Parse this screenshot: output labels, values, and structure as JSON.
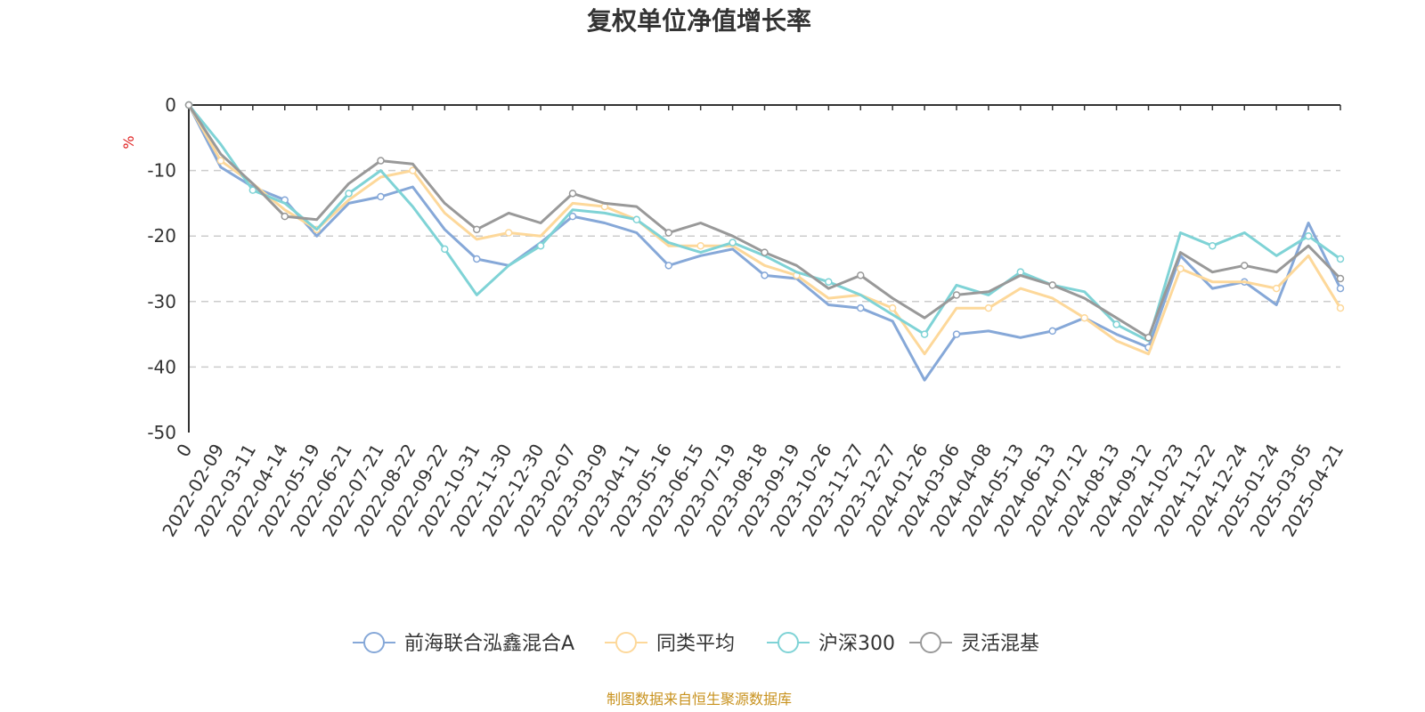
{
  "chart_data": {
    "type": "line",
    "title": "复权单位净值增长率",
    "ylabel": "%",
    "ylim": [
      -50,
      0
    ],
    "yticks": [
      0,
      -10,
      -20,
      -30,
      -40,
      -50
    ],
    "grid": true,
    "legend_position": "bottom",
    "source": "制图数据来自恒生聚源数据库",
    "xticks": [
      "0",
      "2022-02-09",
      "2022-03-11",
      "2022-04-14",
      "2022-05-19",
      "2022-06-21",
      "2022-07-21",
      "2022-08-22",
      "2022-09-22",
      "2022-10-31",
      "2022-11-30",
      "2022-12-30",
      "2023-02-07",
      "2023-03-09",
      "2023-04-11",
      "2023-05-16",
      "2023-06-15",
      "2023-07-19",
      "2023-08-18",
      "2023-09-19",
      "2023-10-26",
      "2023-11-27",
      "2023-12-27",
      "2024-01-26",
      "2024-03-06",
      "2024-04-08",
      "2024-05-13",
      "2024-06-13",
      "2024-07-12",
      "2024-08-13",
      "2024-09-12",
      "2024-10-23",
      "2024-11-22",
      "2024-12-24",
      "2025-01-24",
      "2025-03-05",
      "2025-04-21"
    ],
    "x": [
      "0",
      "2022-02-09",
      "2022-03-11",
      "2022-04-14",
      "2022-05-19",
      "2022-06-21",
      "2022-07-21",
      "2022-08-22",
      "2022-09-22",
      "2022-10-31",
      "2022-11-30",
      "2022-12-30",
      "2023-02-07",
      "2023-03-09",
      "2023-04-11",
      "2023-05-16",
      "2023-06-15",
      "2023-07-19",
      "2023-08-18",
      "2023-09-19",
      "2023-10-26",
      "2023-11-27",
      "2023-12-27",
      "2024-01-26",
      "2024-03-06",
      "2024-04-08",
      "2024-05-13",
      "2024-06-13",
      "2024-07-12",
      "2024-08-13",
      "2024-09-12",
      "2024-10-23",
      "2024-11-22",
      "2024-12-24",
      "2025-01-24",
      "2025-03-05",
      "2025-04-21"
    ],
    "series": [
      {
        "name": "前海联合泓鑫混合A",
        "color": "#86a8d8",
        "values": [
          0,
          -9.5,
          -12.5,
          -14.5,
          -20,
          -15,
          -14,
          -12.5,
          -19,
          -23.5,
          -24.5,
          -21,
          -17,
          -18,
          -19.5,
          -24.5,
          -23,
          -22,
          -26,
          -26.5,
          -30.5,
          -31,
          -33,
          -42,
          -35,
          -34.5,
          -35.5,
          -34.5,
          -32.5,
          -35,
          -37,
          -23,
          -28,
          -27,
          -30.5,
          -18,
          -28
        ]
      },
      {
        "name": "同类平均",
        "color": "#fdd89a",
        "values": [
          0,
          -8.5,
          -12,
          -16,
          -19,
          -14.5,
          -11,
          -10,
          -16.5,
          -20.5,
          -19.5,
          -20,
          -15,
          -15.5,
          -17.5,
          -21.5,
          -21.5,
          -21.5,
          -24.5,
          -26,
          -29.5,
          -29,
          -31,
          -38,
          -31,
          -31,
          -28,
          -29.5,
          -32.5,
          -36,
          -38,
          -25,
          -27,
          -27,
          -28,
          -23,
          -31
        ]
      },
      {
        "name": "沪深300",
        "color": "#7fd3d6",
        "values": [
          0,
          -6,
          -13,
          -15,
          -19,
          -13.5,
          -10,
          -15.5,
          -22,
          -29,
          -24.5,
          -21.5,
          -16,
          -16.5,
          -17.5,
          -21,
          -22.5,
          -21,
          -23,
          -25.5,
          -27,
          -29,
          -32,
          -35,
          -27.5,
          -29,
          -25.5,
          -27.5,
          -28.5,
          -33.5,
          -36,
          -19.5,
          -21.5,
          -19.5,
          -23,
          -20,
          -23.5
        ]
      },
      {
        "name": "灵活混基",
        "color": "#999999",
        "values": [
          0,
          -7.5,
          -12,
          -17,
          -17.5,
          -12,
          -8.5,
          -9,
          -15,
          -19,
          -16.5,
          -18,
          -13.5,
          -15,
          -15.5,
          -19.5,
          -18,
          -20,
          -22.5,
          -24.5,
          -28,
          -26,
          -29.5,
          -32.5,
          -29,
          -28.5,
          -26,
          -27.5,
          -29.5,
          -32.5,
          -35.5,
          -22.5,
          -25.5,
          -24.5,
          -25.5,
          -21.5,
          -26.5
        ]
      }
    ]
  }
}
